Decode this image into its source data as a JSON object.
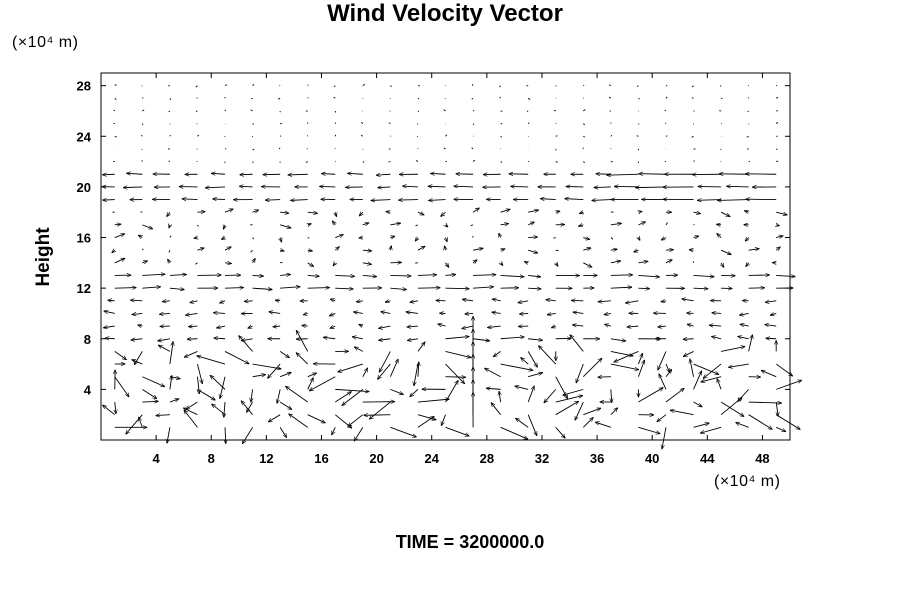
{
  "chart_data": {
    "type": "vector",
    "title": "Wind Velocity Vector",
    "ylabel": "Height",
    "xlabel": "",
    "x_unit_label": "(×10⁴ m)",
    "y_unit_label": "(×10⁴ m)",
    "xlim": [
      0,
      50
    ],
    "ylim": [
      0,
      29
    ],
    "xticks": [
      "4",
      "8",
      "12",
      "16",
      "20",
      "24",
      "28",
      "32",
      "36",
      "40",
      "44",
      "48"
    ],
    "yticks": [
      "4",
      "8",
      "12",
      "16",
      "20",
      "24",
      "28"
    ],
    "grid_x_spacing": 2,
    "grid_y_rows": [
      1,
      2,
      3,
      4,
      5,
      6,
      7,
      8,
      9,
      10,
      11,
      12,
      13,
      14,
      15,
      16,
      17,
      18,
      19,
      20,
      21,
      22,
      23,
      24,
      25,
      26,
      27,
      28
    ],
    "arrow_color": "#000000",
    "grid": false,
    "legend": "none",
    "annotation": "TIME = 3200000.0"
  }
}
